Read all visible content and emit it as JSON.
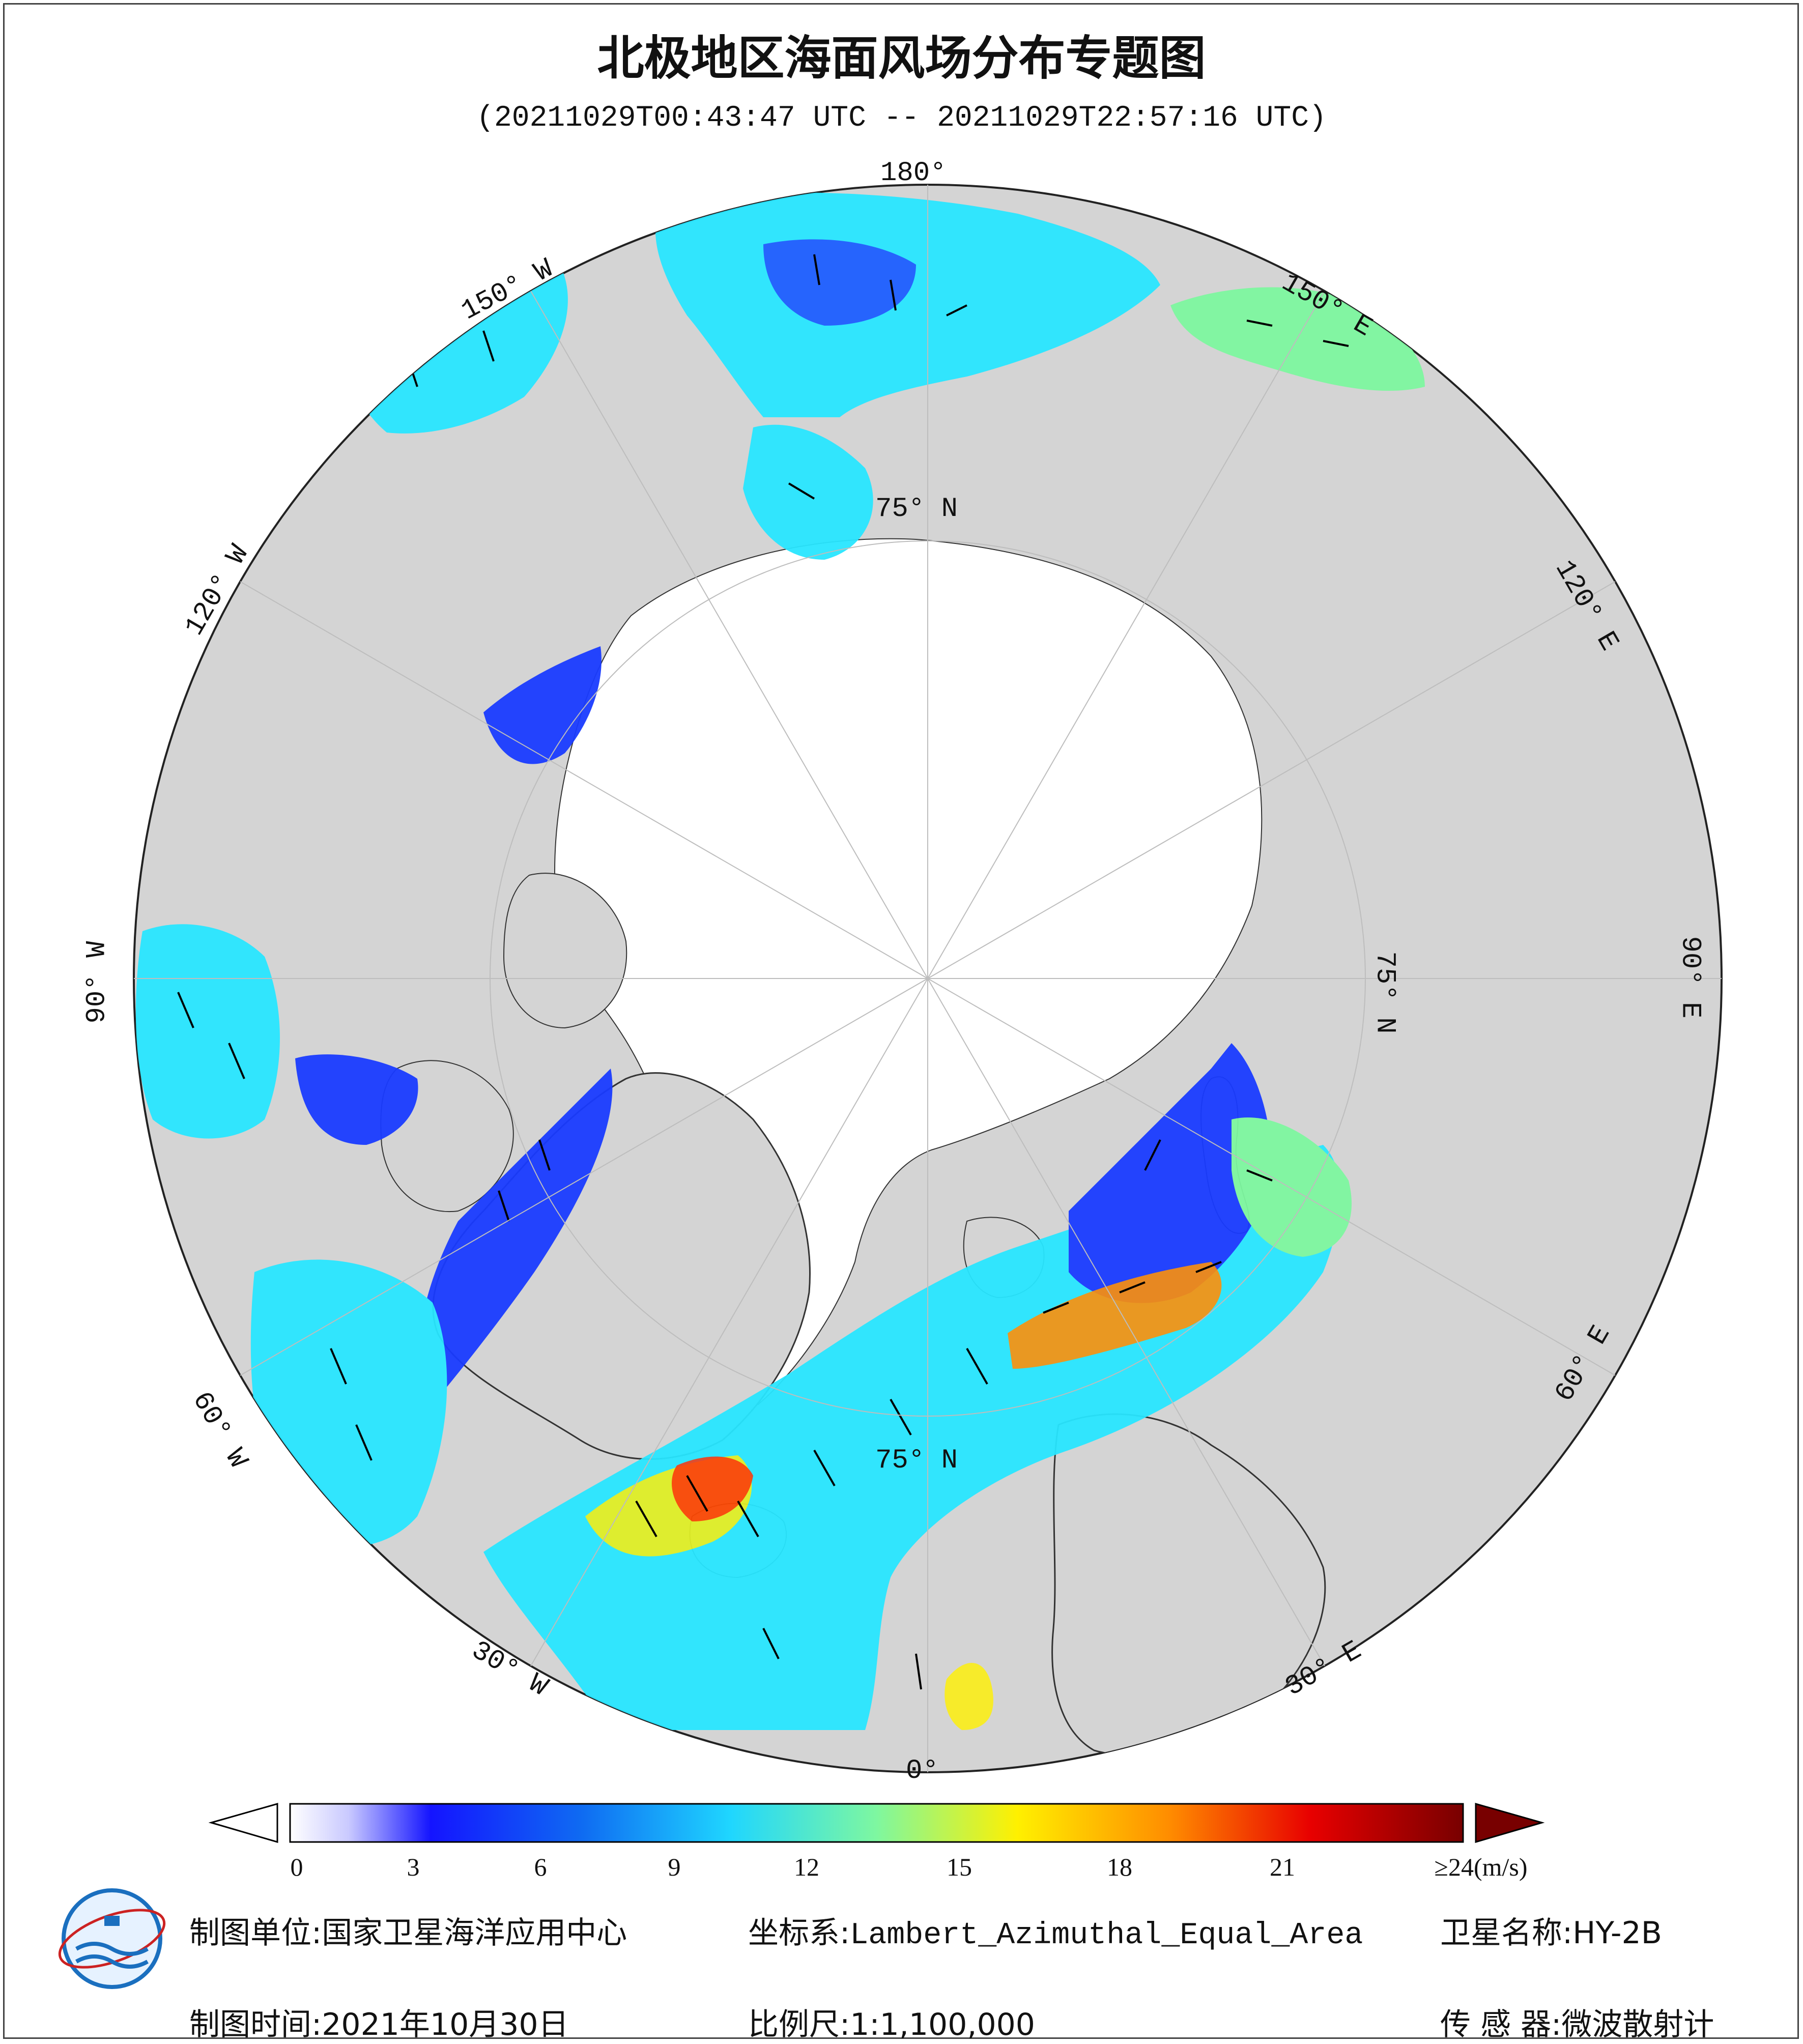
{
  "header": {
    "title": "北极地区海面风场分布专题图",
    "subtitle": "(20211029T00:43:47 UTC -- 20211029T22:57:16 UTC)"
  },
  "map": {
    "projection_labels": {
      "lon_180": "180°",
      "lon_150w": "150° W",
      "lon_120w": "120° W",
      "lon_90w": "90° W",
      "lon_60w": "60° W",
      "lon_30w": "30° W",
      "lon_0": "0°",
      "lon_30e": "30° E",
      "lon_60e": "60° E",
      "lon_90e": "90° E",
      "lon_120e": "120° E",
      "lon_150e": "150° E",
      "lat_75n_top": "75° N",
      "lat_75n_right": "75° N",
      "lat_75n_bottom": "75° N"
    },
    "colors": {
      "land": "#d4d4d4",
      "ice": "#ffffff",
      "wind_low": "#1a3cff",
      "wind_mid": "#29e6ff",
      "wind_high": "#ff2a00"
    }
  },
  "colorbar": {
    "ticks": [
      "0",
      "3",
      "6",
      "9",
      "12",
      "15",
      "18",
      "21",
      "≥24(m/s)"
    ],
    "colors": [
      "#ffffff",
      "#1414ff",
      "#0f6cf2",
      "#1fd6ff",
      "#7ef7a0",
      "#fff000",
      "#ff8c00",
      "#e80000",
      "#780000"
    ]
  },
  "footer": {
    "unit_label": "制图单位:",
    "unit_value": "国家卫星海洋应用中心",
    "coord_label": "坐标系:",
    "coord_value": "Lambert_Azimuthal_Equal_Area",
    "satellite_label": "卫星名称:",
    "satellite_value": "HY-2B",
    "time_label": "制图时间:",
    "time_value": "2021年10月30日",
    "scale_label": "比例尺:",
    "scale_value": "1:1,100,000",
    "sensor_label": "传 感 器:",
    "sensor_value": "微波散射计"
  }
}
